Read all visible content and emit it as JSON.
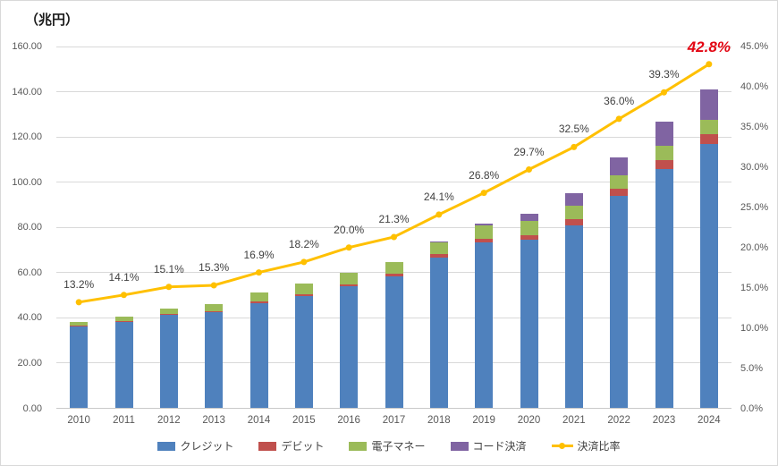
{
  "chart_data": {
    "type": "bar",
    "subtype": "stacked-bar-with-line",
    "title": "（兆円）",
    "categories": [
      "2010",
      "2011",
      "2012",
      "2013",
      "2014",
      "2015",
      "2016",
      "2017",
      "2018",
      "2019",
      "2020",
      "2021",
      "2022",
      "2023",
      "2024"
    ],
    "series": [
      {
        "name": "クレジット",
        "type": "bar",
        "color": "#4F81BD",
        "values": [
          36.1,
          38.4,
          41.5,
          42.6,
          46.3,
          49.8,
          53.9,
          58.4,
          66.7,
          73.4,
          74.5,
          81.0,
          93.8,
          105.7,
          116.9
        ]
      },
      {
        "name": "デビット",
        "type": "bar",
        "color": "#C0504D",
        "values": [
          0.3,
          0.3,
          0.3,
          0.4,
          0.8,
          0.8,
          0.9,
          1.1,
          1.4,
          1.7,
          2.2,
          2.7,
          3.2,
          3.9,
          4.5
        ]
      },
      {
        "name": "電子マネー",
        "type": "bar",
        "color": "#9BBB59",
        "values": [
          1.6,
          2.0,
          2.5,
          3.1,
          4.0,
          4.6,
          5.1,
          5.2,
          5.5,
          5.7,
          6.0,
          6.0,
          6.1,
          6.4,
          6.0
        ]
      },
      {
        "name": "コード決済",
        "type": "bar",
        "color": "#8064A2",
        "values": [
          0,
          0,
          0,
          0,
          0,
          0,
          0,
          0,
          0.2,
          1.0,
          3.2,
          5.3,
          7.9,
          10.9,
          13.6
        ]
      },
      {
        "name": "決済比率",
        "type": "line",
        "axis": "right",
        "color": "#FFC000",
        "values": [
          13.2,
          14.1,
          15.1,
          15.3,
          16.9,
          18.2,
          20.0,
          21.3,
          24.1,
          26.8,
          29.7,
          32.5,
          36.0,
          39.3,
          42.8
        ],
        "labels": [
          "13.2%",
          "14.1%",
          "15.1%",
          "15.3%",
          "16.9%",
          "18.2%",
          "20.0%",
          "21.3%",
          "24.1%",
          "26.8%",
          "29.7%",
          "32.5%",
          "36.0%",
          "39.3%",
          "42.8%"
        ]
      }
    ],
    "y_left": {
      "min": 0,
      "max": 160,
      "ticks": [
        "0.00",
        "20.00",
        "40.00",
        "60.00",
        "80.00",
        "100.00",
        "120.00",
        "140.00",
        "160.00"
      ]
    },
    "y_right": {
      "min": 0,
      "max": 45,
      "ticks": [
        "0.0%",
        "5.0%",
        "10.0%",
        "15.0%",
        "20.0%",
        "25.0%",
        "30.0%",
        "35.0%",
        "40.0%",
        "45.0%"
      ]
    },
    "grid": true,
    "legend_position": "bottom",
    "colors": {
      "grid": "#d9d9d9",
      "axis_text": "#595959",
      "data_label_text": "#404040",
      "highlight_label": "#e30613",
      "background": "#ffffff"
    }
  }
}
